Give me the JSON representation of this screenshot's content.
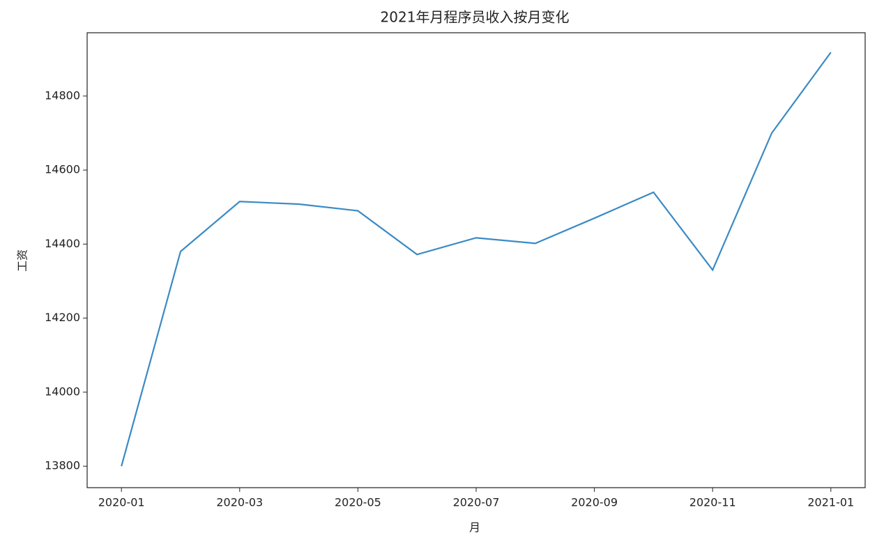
{
  "chart_data": {
    "type": "line",
    "title": "2021年月程序员收入按月变化",
    "x_label": "月",
    "y_label": "工资",
    "x": [
      "2020-01",
      "2020-02",
      "2020-03",
      "2020-04",
      "2020-05",
      "2020-06",
      "2020-07",
      "2020-08",
      "2020-09",
      "2020-10",
      "2020-11",
      "2020-12",
      "2021-01"
    ],
    "values": [
      13800,
      14380,
      14515,
      14508,
      14490,
      14372,
      14417,
      14402,
      14470,
      14540,
      14330,
      14700,
      14918
    ],
    "color": "#3a8ac4",
    "xticks": [
      "2020-01",
      "2020-03",
      "2020-05",
      "2020-07",
      "2020-09",
      "2020-11",
      "2021-01"
    ],
    "ylim": [
      13742,
      14971
    ],
    "yticks": [
      13800,
      14000,
      14200,
      14400,
      14600,
      14800
    ]
  }
}
